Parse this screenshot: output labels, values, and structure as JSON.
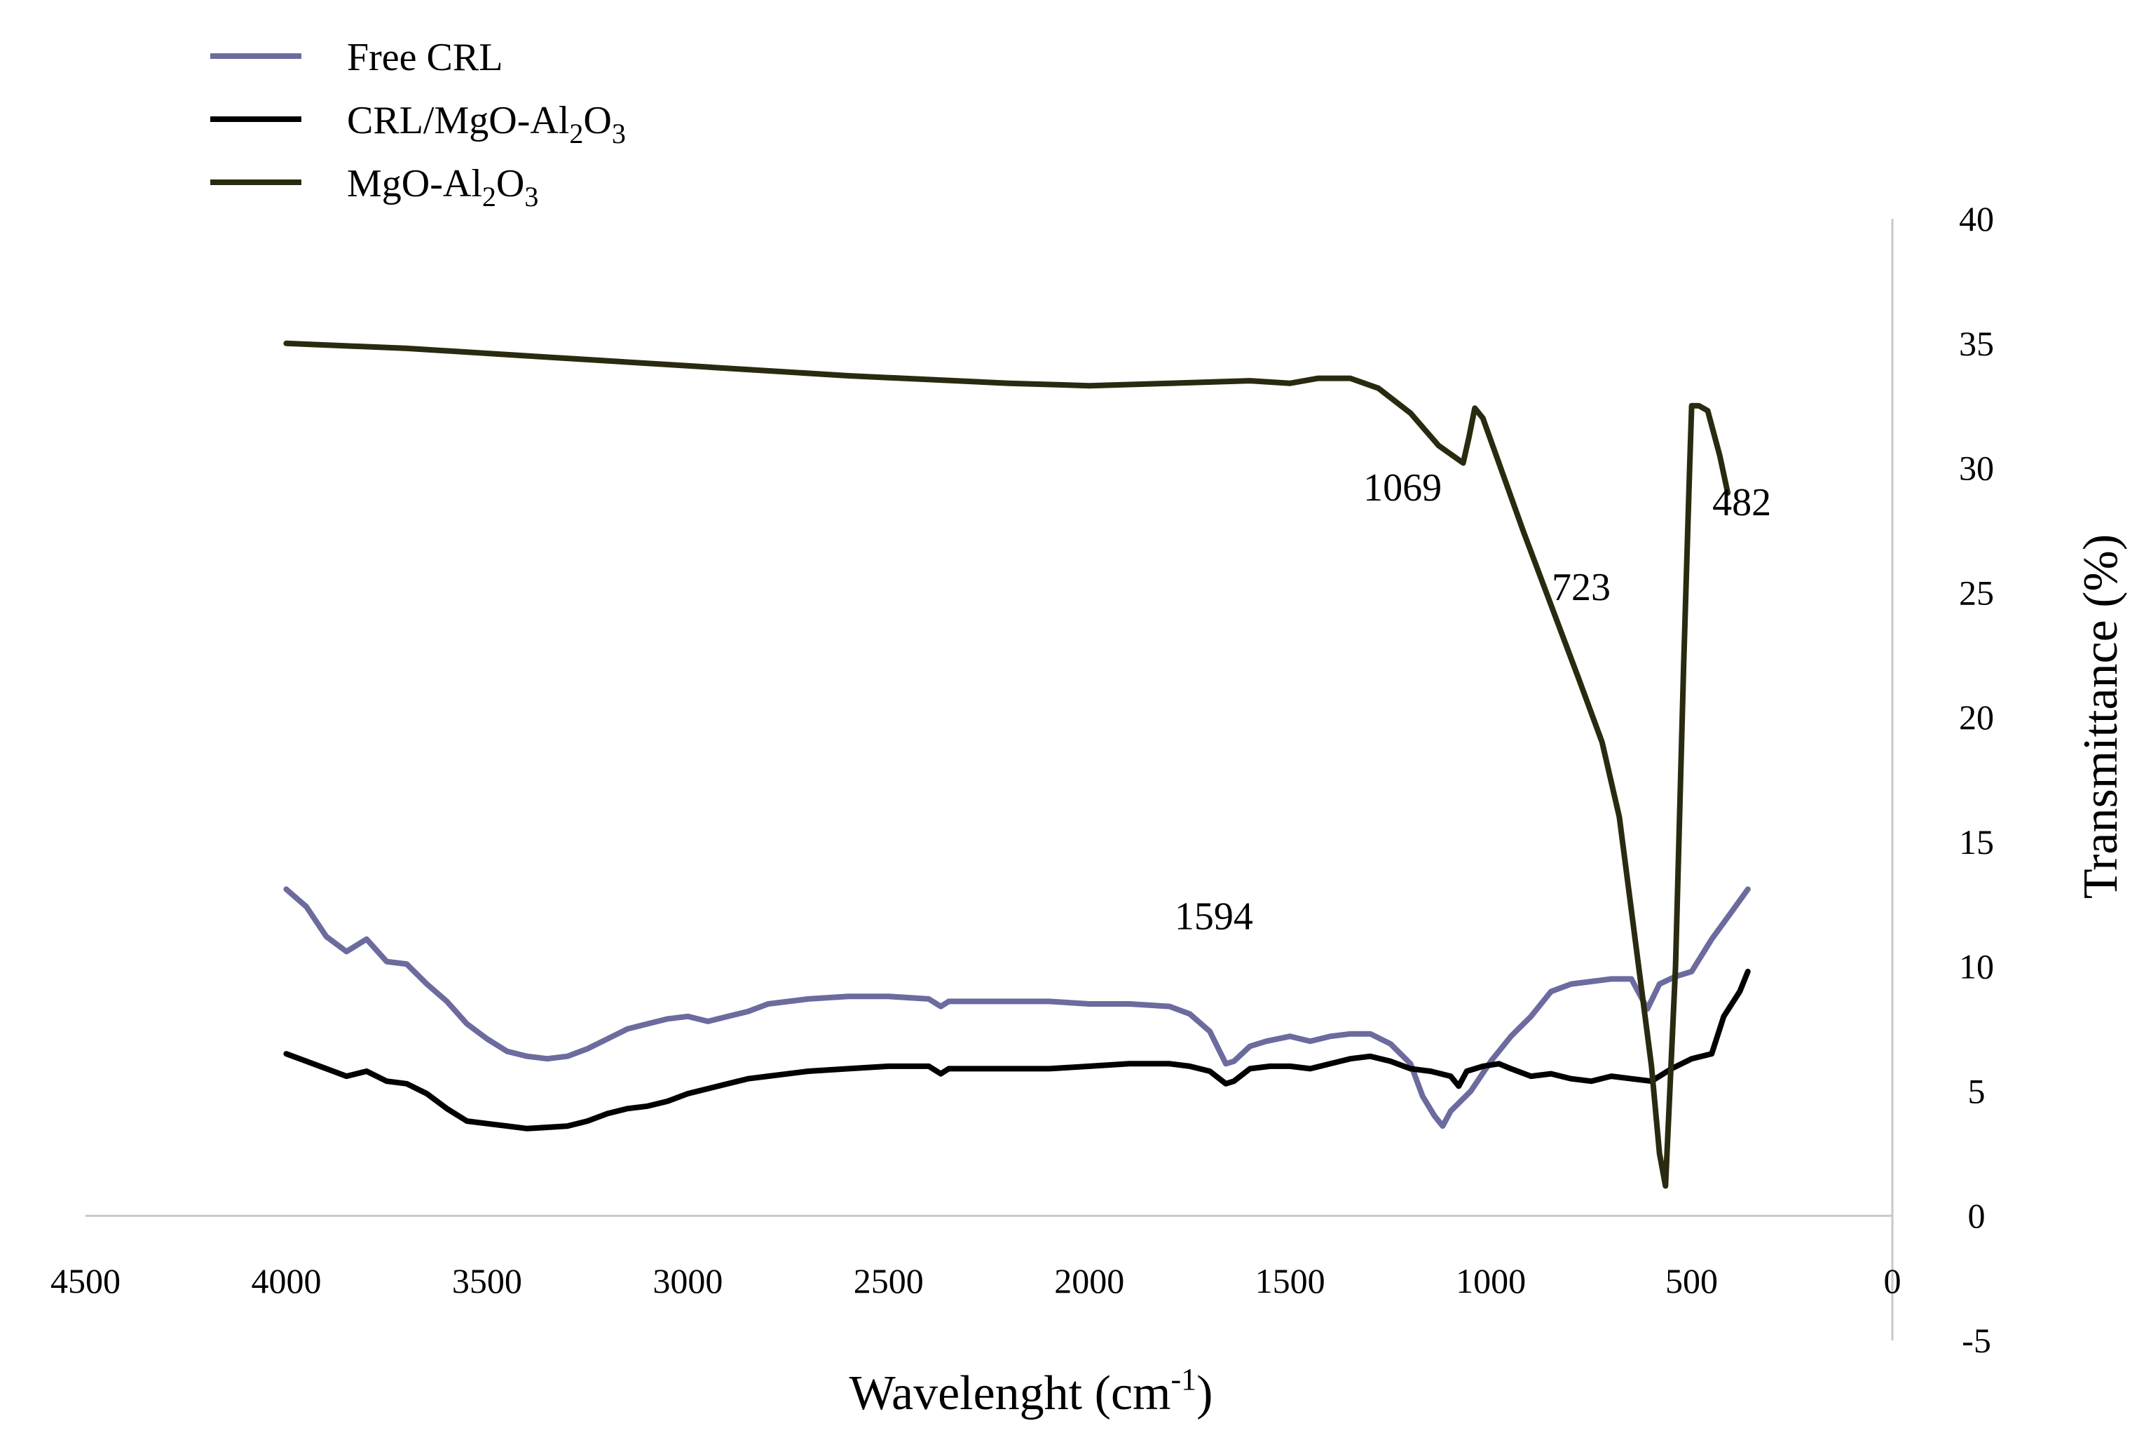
{
  "chart_data": {
    "type": "line",
    "title": "",
    "xlabel": "Wavelenght (cm",
    "xlabel_sup": "-1",
    "xlabel_close": ")",
    "ylabel": "Transmittance (%)",
    "xlim": [
      4500,
      0
    ],
    "ylim": [
      -5,
      40
    ],
    "x_ticks": [
      4500,
      4000,
      3500,
      3000,
      2500,
      2000,
      1500,
      1000,
      500,
      0
    ],
    "y_ticks": [
      -5,
      0,
      5,
      10,
      15,
      20,
      25,
      30,
      35,
      40
    ],
    "legend_position": "top-left",
    "series": [
      {
        "name": "Free CRL",
        "legend_parts": [
          [
            "Free CRL",
            false
          ]
        ],
        "color": "#6b6b9e",
        "points": [
          [
            4000,
            13.1
          ],
          [
            3950,
            12.4
          ],
          [
            3900,
            11.2
          ],
          [
            3850,
            10.6
          ],
          [
            3800,
            11.1
          ],
          [
            3750,
            10.2
          ],
          [
            3700,
            10.1
          ],
          [
            3650,
            9.3
          ],
          [
            3600,
            8.6
          ],
          [
            3550,
            7.7
          ],
          [
            3500,
            7.1
          ],
          [
            3450,
            6.6
          ],
          [
            3400,
            6.4
          ],
          [
            3350,
            6.3
          ],
          [
            3300,
            6.4
          ],
          [
            3250,
            6.7
          ],
          [
            3200,
            7.1
          ],
          [
            3150,
            7.5
          ],
          [
            3100,
            7.7
          ],
          [
            3050,
            7.9
          ],
          [
            3000,
            8.0
          ],
          [
            2950,
            7.8
          ],
          [
            2900,
            8.0
          ],
          [
            2850,
            8.2
          ],
          [
            2800,
            8.5
          ],
          [
            2700,
            8.7
          ],
          [
            2600,
            8.8
          ],
          [
            2500,
            8.8
          ],
          [
            2400,
            8.7
          ],
          [
            2370,
            8.4
          ],
          [
            2350,
            8.6
          ],
          [
            2300,
            8.6
          ],
          [
            2200,
            8.6
          ],
          [
            2100,
            8.6
          ],
          [
            2000,
            8.5
          ],
          [
            1900,
            8.5
          ],
          [
            1800,
            8.4
          ],
          [
            1750,
            8.1
          ],
          [
            1700,
            7.4
          ],
          [
            1660,
            6.1
          ],
          [
            1640,
            6.2
          ],
          [
            1600,
            6.8
          ],
          [
            1560,
            7.0
          ],
          [
            1500,
            7.2
          ],
          [
            1450,
            7.0
          ],
          [
            1400,
            7.2
          ],
          [
            1350,
            7.3
          ],
          [
            1300,
            7.3
          ],
          [
            1250,
            6.9
          ],
          [
            1200,
            6.1
          ],
          [
            1170,
            4.8
          ],
          [
            1140,
            4.0
          ],
          [
            1120,
            3.6
          ],
          [
            1100,
            4.2
          ],
          [
            1050,
            5.0
          ],
          [
            1000,
            6.2
          ],
          [
            950,
            7.2
          ],
          [
            900,
            8.0
          ],
          [
            850,
            9.0
          ],
          [
            800,
            9.3
          ],
          [
            750,
            9.4
          ],
          [
            700,
            9.5
          ],
          [
            650,
            9.5
          ],
          [
            610,
            8.3
          ],
          [
            580,
            9.3
          ],
          [
            540,
            9.6
          ],
          [
            500,
            9.8
          ],
          [
            450,
            11.1
          ],
          [
            400,
            12.2
          ],
          [
            360,
            13.1
          ]
        ]
      },
      {
        "name": "CRL/MgO-Al2O3",
        "legend_parts": [
          [
            "CRL/MgO-Al",
            false
          ],
          [
            "2",
            true
          ],
          [
            "O",
            false
          ],
          [
            "3",
            true
          ]
        ],
        "color": "#000000",
        "points": [
          [
            4000,
            6.5
          ],
          [
            3950,
            6.2
          ],
          [
            3900,
            5.9
          ],
          [
            3850,
            5.6
          ],
          [
            3800,
            5.8
          ],
          [
            3750,
            5.4
          ],
          [
            3700,
            5.3
          ],
          [
            3650,
            4.9
          ],
          [
            3600,
            4.3
          ],
          [
            3550,
            3.8
          ],
          [
            3500,
            3.7
          ],
          [
            3450,
            3.6
          ],
          [
            3400,
            3.5
          ],
          [
            3300,
            3.6
          ],
          [
            3250,
            3.8
          ],
          [
            3200,
            4.1
          ],
          [
            3150,
            4.3
          ],
          [
            3100,
            4.4
          ],
          [
            3050,
            4.6
          ],
          [
            3000,
            4.9
          ],
          [
            2950,
            5.1
          ],
          [
            2900,
            5.3
          ],
          [
            2850,
            5.5
          ],
          [
            2800,
            5.6
          ],
          [
            2700,
            5.8
          ],
          [
            2600,
            5.9
          ],
          [
            2500,
            6.0
          ],
          [
            2400,
            6.0
          ],
          [
            2370,
            5.7
          ],
          [
            2350,
            5.9
          ],
          [
            2300,
            5.9
          ],
          [
            2200,
            5.9
          ],
          [
            2100,
            5.9
          ],
          [
            2000,
            6.0
          ],
          [
            1900,
            6.1
          ],
          [
            1800,
            6.1
          ],
          [
            1750,
            6.0
          ],
          [
            1700,
            5.8
          ],
          [
            1660,
            5.3
          ],
          [
            1640,
            5.4
          ],
          [
            1600,
            5.9
          ],
          [
            1550,
            6.0
          ],
          [
            1500,
            6.0
          ],
          [
            1450,
            5.9
          ],
          [
            1400,
            6.1
          ],
          [
            1350,
            6.3
          ],
          [
            1300,
            6.4
          ],
          [
            1250,
            6.2
          ],
          [
            1200,
            5.9
          ],
          [
            1150,
            5.8
          ],
          [
            1100,
            5.6
          ],
          [
            1080,
            5.2
          ],
          [
            1060,
            5.8
          ],
          [
            1020,
            6.0
          ],
          [
            980,
            6.1
          ],
          [
            950,
            5.9
          ],
          [
            900,
            5.6
          ],
          [
            850,
            5.7
          ],
          [
            800,
            5.5
          ],
          [
            750,
            5.4
          ],
          [
            700,
            5.6
          ],
          [
            650,
            5.5
          ],
          [
            600,
            5.4
          ],
          [
            550,
            5.9
          ],
          [
            500,
            6.3
          ],
          [
            450,
            6.5
          ],
          [
            420,
            8.0
          ],
          [
            380,
            9.0
          ],
          [
            360,
            9.8
          ]
        ]
      },
      {
        "name": "MgO-Al2O3",
        "legend_parts": [
          [
            "MgO-Al",
            false
          ],
          [
            "2",
            true
          ],
          [
            "O",
            false
          ],
          [
            "3",
            true
          ]
        ],
        "color": "#2a2a10",
        "points": [
          [
            4000,
            35.0
          ],
          [
            3700,
            34.8
          ],
          [
            3400,
            34.5
          ],
          [
            3000,
            34.1
          ],
          [
            2600,
            33.7
          ],
          [
            2200,
            33.4
          ],
          [
            2000,
            33.3
          ],
          [
            1800,
            33.4
          ],
          [
            1600,
            33.5
          ],
          [
            1500,
            33.4
          ],
          [
            1430,
            33.6
          ],
          [
            1350,
            33.6
          ],
          [
            1280,
            33.2
          ],
          [
            1200,
            32.2
          ],
          [
            1130,
            30.9
          ],
          [
            1069,
            30.2
          ],
          [
            1055,
            31.2
          ],
          [
            1040,
            32.4
          ],
          [
            1020,
            32.0
          ],
          [
            980,
            30.2
          ],
          [
            920,
            27.5
          ],
          [
            850,
            24.5
          ],
          [
            780,
            21.5
          ],
          [
            723,
            19.0
          ],
          [
            680,
            16.0
          ],
          [
            640,
            11.0
          ],
          [
            600,
            6.0
          ],
          [
            580,
            2.5
          ],
          [
            565,
            1.2
          ],
          [
            540,
            10.0
          ],
          [
            520,
            22.0
          ],
          [
            505,
            30.0
          ],
          [
            500,
            32.5
          ],
          [
            482,
            32.5
          ],
          [
            460,
            32.3
          ],
          [
            430,
            30.5
          ],
          [
            410,
            29.0
          ]
        ]
      }
    ],
    "annotations": [
      {
        "label": "1069",
        "x": 1220,
        "y": 28.7
      },
      {
        "label": "723",
        "x": 775,
        "y": 24.7
      },
      {
        "label": "482",
        "x": 375,
        "y": 28.1
      },
      {
        "label": "1594",
        "x": 1690,
        "y": 11.5
      }
    ]
  }
}
